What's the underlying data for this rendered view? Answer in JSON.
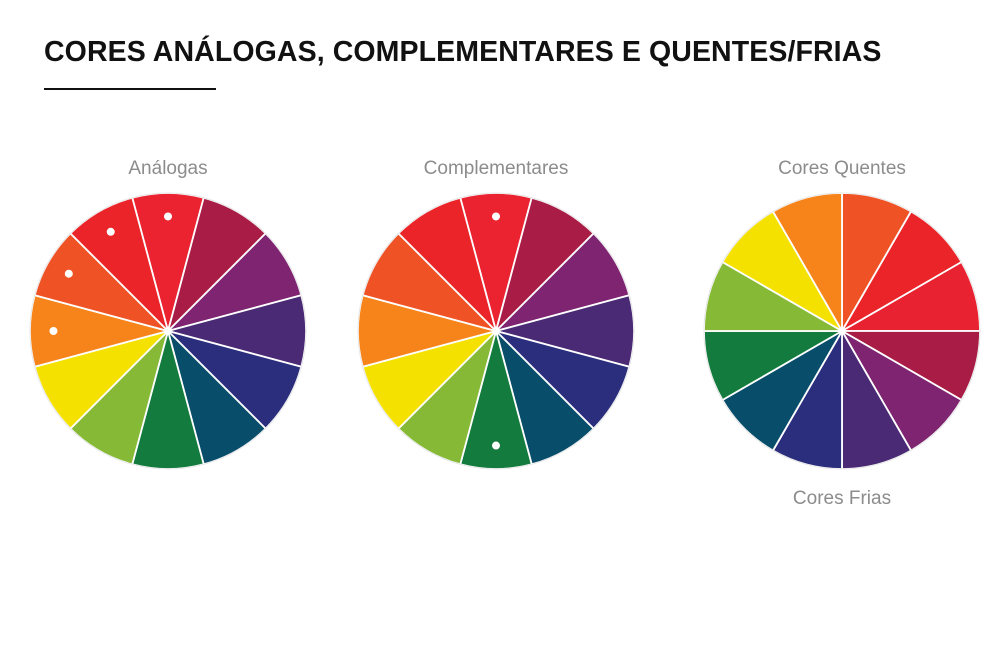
{
  "title": "CORES ANÁLOGAS, COMPLEMENTARES E QUENTES/FRIAS",
  "wheels": {
    "analogas": {
      "label": "Análogas",
      "colors": [
        "#EB2230",
        "#A81C46",
        "#7E2471",
        "#4A2A74",
        "#2B2E7D",
        "#084D6A",
        "#137B3E",
        "#86B935",
        "#F5E100",
        "#F7841B",
        "#EF5325",
        "#EA2428"
      ],
      "marked_segments": [
        0,
        9,
        10,
        11
      ]
    },
    "complementares": {
      "label": "Complementares",
      "colors": [
        "#EB2230",
        "#A81C46",
        "#7E2471",
        "#4A2A74",
        "#2B2E7D",
        "#084D6A",
        "#137B3E",
        "#86B935",
        "#F5E100",
        "#F7841B",
        "#EF5325",
        "#EA2428"
      ],
      "marked_segments": [
        0,
        6
      ]
    },
    "quentes_frias": {
      "label_top": "Cores Quentes",
      "label_bottom": "Cores Frias",
      "colors": [
        "#EF5325",
        "#EA2428",
        "#E82230",
        "#A81C46",
        "#7E2471",
        "#4A2A74",
        "#2B2E7D",
        "#084D6A",
        "#137B3E",
        "#86B935",
        "#F5E100",
        "#F7841B"
      ]
    }
  }
}
